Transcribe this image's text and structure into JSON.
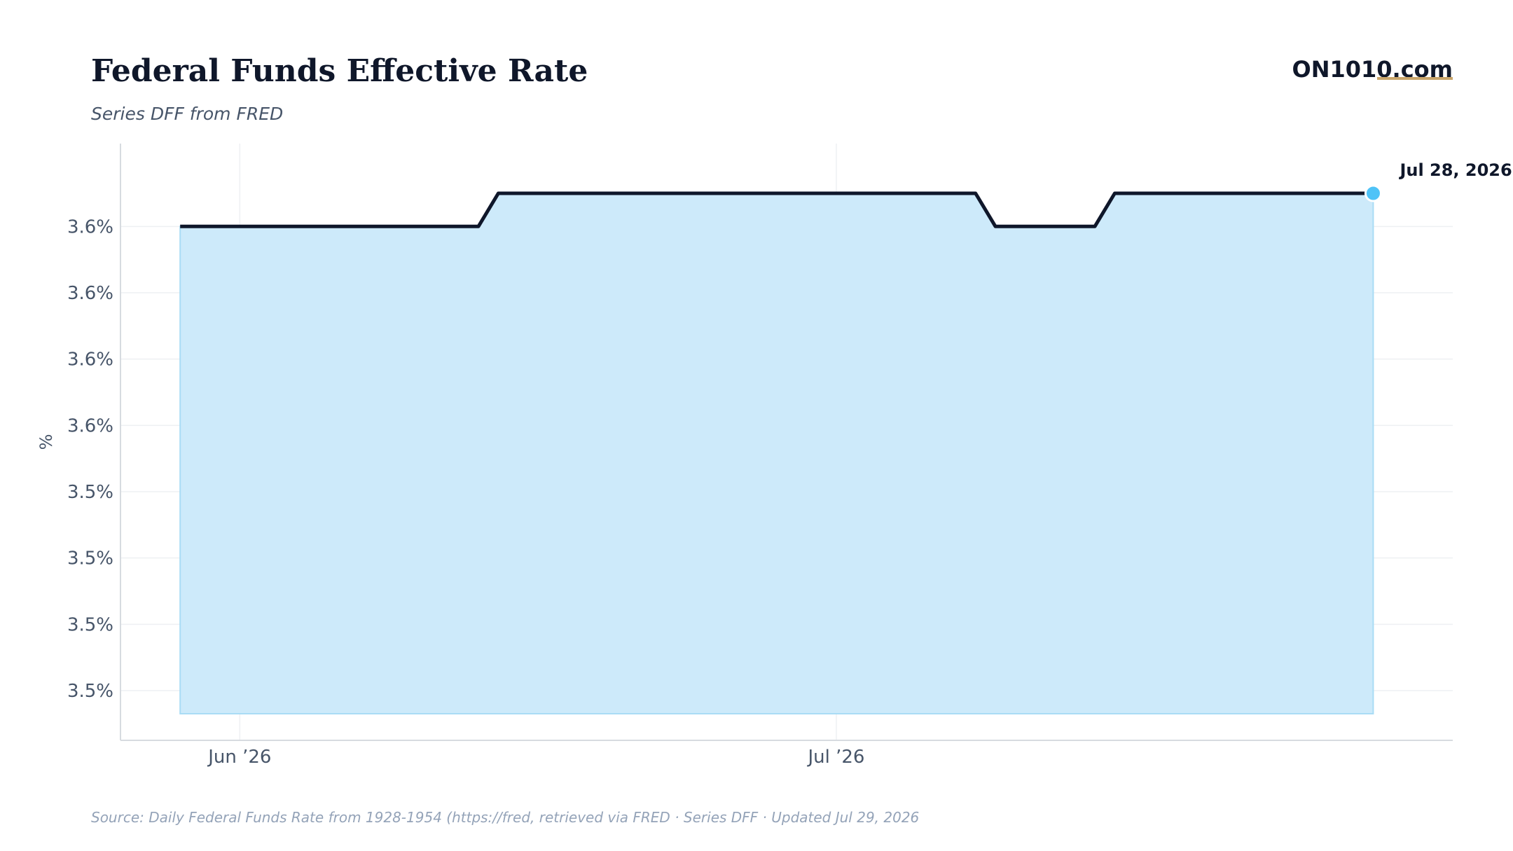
{
  "header": {
    "title": "Federal Funds Effective Rate",
    "subtitle": "Series DFF from FRED",
    "brand": "ON1010.com"
  },
  "footer": {
    "source": "Source:  Daily Federal Funds Rate from 1928-1954 (https://fred, retrieved via FRED · Series DFF · Updated Jul 29, 2026"
  },
  "colors": {
    "line": "#0f172a",
    "fill": "#cdeafa",
    "fill_edge": "#a9dcf5",
    "marker": "#4fc3f7",
    "brand_underline": "#c9a56a"
  },
  "chart_data": {
    "type": "area",
    "title": "Federal Funds Effective Rate",
    "subtitle": "Series DFF from FRED",
    "ylabel": "%",
    "xlabel": "",
    "x": [
      "2026-05-29",
      "2026-05-30",
      "2026-05-31",
      "2026-06-01",
      "2026-06-02",
      "2026-06-03",
      "2026-06-04",
      "2026-06-05",
      "2026-06-06",
      "2026-06-07",
      "2026-06-08",
      "2026-06-09",
      "2026-06-10",
      "2026-06-11",
      "2026-06-12",
      "2026-06-13",
      "2026-06-14",
      "2026-06-15",
      "2026-06-16",
      "2026-06-17",
      "2026-06-18",
      "2026-06-19",
      "2026-06-20",
      "2026-06-21",
      "2026-06-22",
      "2026-06-23",
      "2026-06-24",
      "2026-06-25",
      "2026-06-26",
      "2026-06-27",
      "2026-06-28",
      "2026-06-29",
      "2026-06-30",
      "2026-07-01",
      "2026-07-02",
      "2026-07-03",
      "2026-07-04",
      "2026-07-05",
      "2026-07-06",
      "2026-07-07",
      "2026-07-08",
      "2026-07-09",
      "2026-07-10",
      "2026-07-11",
      "2026-07-12",
      "2026-07-13",
      "2026-07-14",
      "2026-07-15",
      "2026-07-16",
      "2026-07-17",
      "2026-07-18",
      "2026-07-19",
      "2026-07-20",
      "2026-07-21",
      "2026-07-22",
      "2026-07-23",
      "2026-07-24",
      "2026-07-25",
      "2026-07-26",
      "2026-07-27",
      "2026-07-28"
    ],
    "y": [
      3.63,
      3.63,
      3.63,
      3.63,
      3.63,
      3.63,
      3.63,
      3.63,
      3.63,
      3.63,
      3.63,
      3.63,
      3.63,
      3.63,
      3.63,
      3.63,
      3.64,
      3.64,
      3.64,
      3.64,
      3.64,
      3.64,
      3.64,
      3.64,
      3.64,
      3.64,
      3.64,
      3.64,
      3.64,
      3.64,
      3.64,
      3.64,
      3.64,
      3.64,
      3.64,
      3.64,
      3.64,
      3.64,
      3.64,
      3.64,
      3.64,
      3.63,
      3.63,
      3.63,
      3.63,
      3.63,
      3.63,
      3.64,
      3.64,
      3.64,
      3.64,
      3.64,
      3.64,
      3.64,
      3.64,
      3.64,
      3.64,
      3.64,
      3.64,
      3.64,
      3.64
    ],
    "ylim": [
      3.475,
      3.655
    ],
    "y_ticks": [
      3.49,
      3.51,
      3.53,
      3.55,
      3.57,
      3.59,
      3.61,
      3.63
    ],
    "y_tick_labels": [
      "3.5%",
      "3.5%",
      "3.5%",
      "3.5%",
      "3.6%",
      "3.6%",
      "3.6%",
      "3.6%"
    ],
    "x_ticks": [
      "2026-06-01",
      "2026-07-01"
    ],
    "x_tick_labels": [
      "Jun ’26",
      "Jul ’26"
    ],
    "end_label": "Jul 28, 2026",
    "grid": true,
    "legend": "none"
  }
}
